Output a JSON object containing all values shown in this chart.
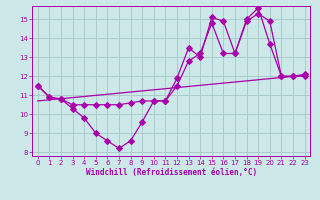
{
  "xlabel": "Windchill (Refroidissement éolien,°C)",
  "bg_color": "#cce8e8",
  "grid_color": "#aacccc",
  "line_color": "#aa00aa",
  "xlim": [
    -0.5,
    23.5
  ],
  "ylim": [
    7.8,
    15.7
  ],
  "yticks": [
    8,
    9,
    10,
    11,
    12,
    13,
    14,
    15
  ],
  "xticks": [
    0,
    1,
    2,
    3,
    4,
    5,
    6,
    7,
    8,
    9,
    10,
    11,
    12,
    13,
    14,
    15,
    16,
    17,
    18,
    19,
    20,
    21,
    22,
    23
  ],
  "series1_x": [
    0,
    1,
    2,
    3,
    4,
    5,
    6,
    7,
    8,
    9,
    10,
    11,
    12,
    13,
    14,
    15,
    16,
    17,
    18,
    19,
    20,
    21,
    22,
    23
  ],
  "series1_y": [
    11.5,
    10.9,
    10.8,
    10.3,
    9.8,
    9.0,
    8.6,
    8.2,
    8.6,
    9.6,
    10.7,
    10.7,
    11.9,
    13.5,
    13.0,
    15.1,
    14.9,
    13.2,
    15.0,
    15.6,
    13.7,
    12.0,
    12.0,
    12.1
  ],
  "series2_x": [
    0,
    1,
    2,
    3,
    4,
    5,
    6,
    7,
    8,
    9,
    10,
    11,
    12,
    13,
    14,
    15,
    16,
    17,
    18,
    19,
    20,
    21,
    22,
    23
  ],
  "series2_y": [
    11.5,
    10.9,
    10.8,
    10.5,
    10.5,
    10.5,
    10.5,
    10.5,
    10.6,
    10.7,
    10.7,
    10.7,
    11.5,
    12.8,
    13.2,
    14.8,
    13.2,
    13.2,
    14.9,
    15.3,
    14.9,
    12.0,
    12.0,
    12.0
  ],
  "series3_x": [
    0,
    23
  ],
  "series3_y": [
    10.7,
    12.05
  ]
}
